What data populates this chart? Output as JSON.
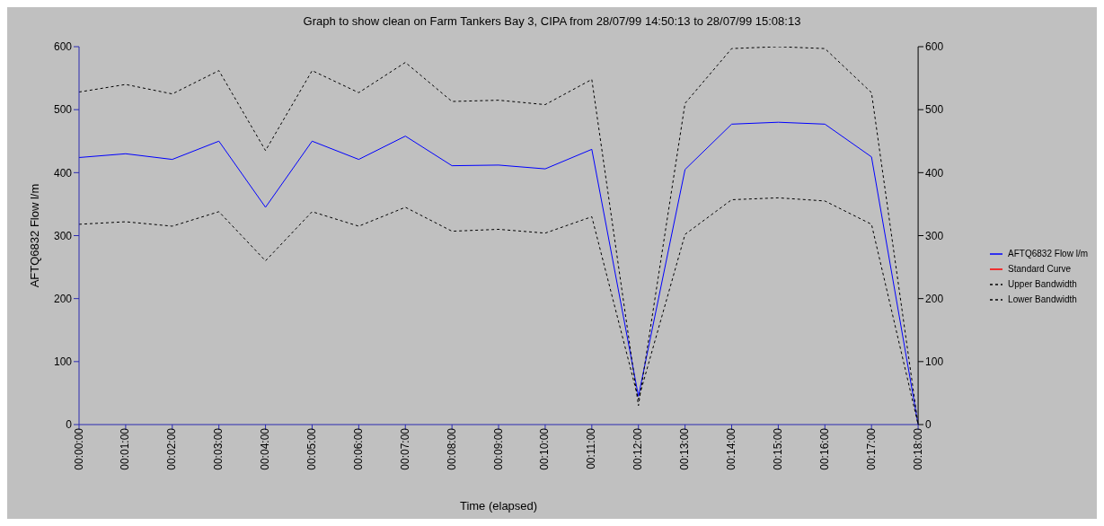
{
  "chart_data": {
    "type": "line",
    "title": "Graph to show clean on Farm Tankers Bay 3, CIPA from 28/07/99 14:50:13 to 28/07/99 15:08:13",
    "xlabel": "Time (elapsed)",
    "ylabel": "AFTQ6832 Flow l/m",
    "categories": [
      "00:00:00",
      "00:01:00",
      "00:02:00",
      "00:03:00",
      "00:04:00",
      "00:05:00",
      "00:06:00",
      "00:07:00",
      "00:08:00",
      "00:09:00",
      "00:10:00",
      "00:11:00",
      "00:12:00",
      "00:13:00",
      "00:14:00",
      "00:15:00",
      "00:16:00",
      "00:17:00",
      "00:18:00"
    ],
    "series": [
      {
        "name": "AFTQ6832 Flow l/m",
        "color": "#0000ff",
        "line_style": "solid",
        "values": [
          424,
          430,
          421,
          450,
          345,
          450,
          421,
          458,
          411,
          412,
          406,
          437,
          45,
          405,
          477,
          480,
          477,
          425,
          0
        ]
      },
      {
        "name": "Standard Curve",
        "color": "#ff0000",
        "line_style": "solid",
        "values": [
          null,
          null,
          null,
          null,
          null,
          null,
          null,
          null,
          null,
          null,
          null,
          null,
          null,
          null,
          null,
          null,
          null,
          null,
          null
        ]
      },
      {
        "name": "Upper Bandwidth",
        "color": "#000000",
        "line_style": "dashed",
        "values": [
          528,
          540,
          525,
          562,
          435,
          562,
          527,
          575,
          513,
          515,
          508,
          548,
          30,
          510,
          597,
          600,
          597,
          527,
          0
        ]
      },
      {
        "name": "Lower Bandwidth",
        "color": "#000000",
        "line_style": "dashed",
        "values": [
          318,
          322,
          315,
          338,
          260,
          338,
          315,
          345,
          307,
          310,
          304,
          330,
          40,
          302,
          357,
          360,
          355,
          318,
          0
        ]
      }
    ],
    "ylim": [
      0,
      600
    ],
    "yticks": [
      0,
      100,
      200,
      300,
      400,
      500,
      600
    ],
    "y2lim": [
      0,
      600
    ],
    "y2ticks": [
      0,
      100,
      200,
      300,
      400,
      500,
      600
    ],
    "grid": false,
    "legend": "right",
    "marker": "none"
  }
}
